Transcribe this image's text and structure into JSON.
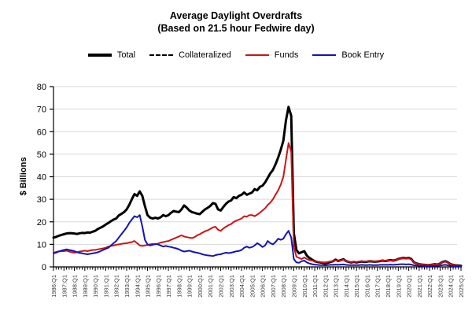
{
  "title": {
    "line1": "Average Daylight Overdrafts",
    "line2": "(Based on 21.5 hour Fedwire day)"
  },
  "legend": [
    {
      "label": "Total",
      "color": "#000000",
      "style": "solid",
      "weight": "thick"
    },
    {
      "label": "Collateralized",
      "color": "#000000",
      "style": "dashed",
      "weight": "normal"
    },
    {
      "label": "Funds",
      "color": "#cc1414",
      "style": "solid",
      "weight": "normal"
    },
    {
      "label": "Book Entry",
      "color": "#1414b4",
      "style": "solid",
      "weight": "normal"
    }
  ],
  "chart_data": {
    "type": "line",
    "title": "Average Daylight Overdrafts",
    "subtitle": "(Based on 21.5 hour Fedwire day)",
    "ylabel": "$ Billions",
    "xlabel": "",
    "ylim": [
      0,
      80
    ],
    "yticks": [
      0,
      10,
      20,
      30,
      40,
      50,
      60,
      70,
      80
    ],
    "grid": "horizontal",
    "grid_color": "#d9d9d9",
    "axis_color": "#000000",
    "x_tick_label_color": "#3a3a3a",
    "legend_position": "top",
    "x_frequency": "quarterly",
    "x_start": "1986:Q1",
    "x_end": "2025:Q1",
    "points_total": 157,
    "x_tick_labels": [
      "1986:Q1",
      "1987:Q1",
      "1988:Q1",
      "1989:Q1",
      "1990:Q1",
      "1991:Q1",
      "1992:Q1",
      "1993:Q1",
      "1994:Q1",
      "1995:Q1",
      "1996:Q1",
      "1997:Q1",
      "1998:Q1",
      "1999:Q1",
      "2000:Q1",
      "2001:Q1",
      "2002:Q1",
      "2003:Q1",
      "2004:Q1",
      "2005:Q1",
      "2006:Q1",
      "2007:Q1",
      "2008:Q1",
      "2009:Q1",
      "2010:Q1",
      "2011:Q1",
      "2012:Q1",
      "2013:Q1",
      "2014:Q1",
      "2015:Q1",
      "2016:Q1",
      "2017:Q1",
      "2018:Q1",
      "2019:Q1",
      "2020:Q1",
      "2021:Q1",
      "2022:Q1",
      "2023:Q1",
      "2024:Q1",
      "2025:Q1"
    ],
    "series": [
      {
        "name": "Total",
        "color": "#000000",
        "width": 3,
        "dash": null,
        "start_index": 0,
        "values": [
          13.0,
          13.3,
          13.8,
          14.2,
          14.5,
          14.8,
          15.0,
          14.9,
          14.8,
          14.6,
          14.9,
          15.1,
          15.0,
          15.3,
          15.2,
          15.6,
          16.0,
          16.8,
          17.4,
          18.0,
          18.8,
          19.5,
          20.3,
          21.0,
          21.5,
          22.8,
          23.5,
          24.3,
          25.5,
          27.5,
          30.0,
          32.3,
          31.5,
          33.5,
          31.5,
          27.0,
          23.0,
          21.8,
          21.5,
          21.8,
          21.5,
          22.0,
          23.0,
          22.5,
          23.0,
          24.0,
          24.8,
          24.5,
          24.3,
          25.5,
          27.3,
          26.3,
          25.0,
          24.3,
          24.0,
          23.6,
          23.4,
          24.5,
          25.5,
          26.2,
          27.0,
          28.3,
          28.0,
          25.5,
          25.0,
          26.5,
          28.0,
          29.0,
          29.5,
          31.0,
          30.5,
          31.5,
          32.0,
          33.0,
          32.0,
          32.5,
          33.0,
          34.5,
          34.0,
          35.5,
          36.0,
          37.5,
          39.5,
          41.5,
          43.0,
          45.5,
          48.5,
          52.0,
          56.0,
          65.0,
          71.0,
          67.0,
          15.0,
          7.5,
          6.0,
          6.5,
          7.0,
          5.0,
          4.0,
          3.2,
          2.5,
          2.2,
          2.0,
          1.8,
          1.5,
          1.8,
          2.2,
          2.5,
          3.2,
          2.6,
          3.0,
          3.4,
          2.6,
          2.2,
          2.0,
          2.2,
          2.0,
          2.2,
          2.4,
          2.2,
          2.3,
          2.5,
          2.4,
          2.3,
          2.4,
          2.6,
          2.8,
          2.6,
          2.8,
          3.0,
          2.8,
          3.0,
          3.5,
          3.8,
          4.0,
          3.8,
          4.0,
          3.5,
          2.0,
          1.5,
          1.2,
          1.0,
          0.9,
          0.8,
          0.8,
          1.0,
          1.2,
          1.0,
          1.5,
          2.2,
          2.5,
          2.0,
          1.2,
          0.9,
          0.7,
          0.6,
          0.5
        ]
      },
      {
        "name": "Collateralized",
        "color": "#000000",
        "width": 2,
        "dash": [
          5,
          4
        ],
        "start_index": 100,
        "values": [
          2.4,
          2.1,
          1.9,
          1.7,
          1.4,
          1.7,
          2.1,
          2.4,
          3.0,
          2.5,
          2.9,
          3.3,
          2.5,
          2.1,
          1.9,
          2.1,
          1.9,
          2.1,
          2.3,
          2.1,
          2.2,
          2.4,
          2.3,
          2.2,
          2.3,
          2.5,
          2.7,
          2.5,
          2.7,
          2.9,
          2.7,
          2.9,
          3.4,
          3.7,
          3.9,
          3.7,
          3.9,
          3.4,
          1.9,
          1.4,
          1.1,
          0.9,
          0.8,
          0.7,
          0.7,
          0.9,
          1.1,
          0.9,
          1.4,
          2.1,
          2.4,
          1.9,
          1.1,
          0.8,
          0.6,
          0.5,
          0.4
        ]
      },
      {
        "name": "Funds",
        "color": "#cc1414",
        "width": 2,
        "dash": null,
        "start_index": 0,
        "values": [
          6.3,
          6.6,
          6.9,
          7.0,
          7.0,
          7.2,
          6.8,
          6.5,
          6.3,
          6.5,
          6.8,
          7.0,
          7.2,
          7.0,
          7.3,
          7.5,
          7.5,
          7.8,
          8.0,
          8.2,
          8.5,
          9.0,
          9.3,
          9.5,
          9.8,
          10.0,
          10.2,
          10.4,
          10.5,
          10.8,
          11.0,
          11.5,
          10.5,
          9.5,
          9.3,
          9.5,
          9.7,
          10.0,
          10.2,
          10.0,
          10.3,
          10.8,
          11.0,
          11.3,
          11.5,
          12.0,
          12.5,
          13.0,
          13.5,
          14.0,
          13.5,
          13.2,
          13.0,
          12.8,
          13.2,
          14.0,
          14.5,
          15.2,
          15.8,
          16.2,
          16.8,
          17.5,
          17.8,
          16.5,
          16.0,
          17.0,
          17.8,
          18.5,
          19.0,
          20.0,
          20.5,
          21.0,
          21.5,
          22.5,
          22.3,
          23.0,
          23.0,
          22.5,
          23.2,
          24.0,
          25.0,
          26.0,
          27.5,
          28.5,
          30.0,
          32.0,
          34.0,
          36.5,
          40.0,
          47.5,
          55.0,
          51.0,
          9.0,
          4.5,
          4.0,
          3.5,
          4.2,
          3.5,
          3.0,
          2.8,
          2.5,
          2.3,
          2.2,
          2.0,
          2.0,
          2.2,
          2.4,
          2.6,
          3.0,
          2.6,
          2.9,
          3.2,
          2.6,
          2.3,
          2.2,
          2.3,
          2.2,
          2.4,
          2.5,
          2.3,
          2.4,
          2.6,
          2.5,
          2.4,
          2.5,
          2.7,
          2.8,
          2.7,
          2.8,
          2.9,
          2.8,
          3.0,
          3.4,
          3.7,
          3.8,
          3.6,
          3.8,
          3.3,
          1.9,
          1.4,
          1.2,
          1.0,
          0.9,
          0.8,
          0.8,
          1.0,
          1.1,
          1.0,
          1.4,
          2.1,
          2.4,
          1.9,
          1.1,
          0.9,
          0.7,
          0.5,
          0.4
        ]
      },
      {
        "name": "Book Entry",
        "color": "#1414b4",
        "width": 2,
        "dash": null,
        "start_index": 0,
        "values": [
          6.0,
          6.3,
          6.8,
          7.2,
          7.5,
          7.8,
          7.5,
          7.3,
          7.0,
          6.5,
          6.2,
          6.0,
          5.8,
          5.6,
          5.8,
          6.0,
          6.2,
          6.5,
          7.0,
          7.5,
          8.0,
          8.5,
          9.5,
          10.5,
          11.5,
          13.0,
          14.5,
          16.0,
          17.5,
          19.5,
          21.0,
          22.5,
          22.0,
          23.0,
          18.0,
          12.0,
          10.0,
          9.5,
          9.8,
          10.2,
          10.0,
          9.5,
          9.0,
          9.3,
          9.0,
          8.8,
          8.5,
          8.2,
          7.8,
          7.2,
          6.8,
          7.0,
          7.2,
          6.8,
          6.5,
          6.3,
          6.0,
          5.6,
          5.3,
          5.1,
          5.0,
          4.8,
          5.2,
          5.5,
          5.6,
          6.0,
          6.3,
          6.1,
          6.3,
          6.6,
          6.9,
          7.1,
          7.5,
          8.5,
          9.0,
          8.5,
          8.8,
          9.5,
          10.5,
          9.8,
          8.8,
          9.5,
          11.5,
          10.5,
          10.0,
          11.0,
          12.5,
          12.0,
          12.5,
          14.5,
          16.0,
          13.0,
          3.5,
          2.0,
          1.8,
          2.5,
          2.8,
          2.0,
          1.5,
          1.2,
          1.0,
          0.9,
          0.8,
          0.8,
          0.7,
          0.8,
          0.9,
          0.9,
          1.0,
          0.9,
          1.0,
          1.1,
          0.9,
          0.8,
          0.8,
          0.8,
          0.8,
          0.8,
          0.9,
          0.8,
          0.8,
          0.9,
          0.8,
          0.8,
          0.8,
          0.9,
          0.9,
          0.9,
          0.9,
          1.0,
          0.9,
          1.0,
          1.1,
          1.2,
          1.2,
          1.1,
          1.2,
          1.0,
          0.7,
          0.6,
          0.5,
          0.5,
          0.4,
          0.4,
          0.4,
          0.5,
          0.5,
          0.5,
          0.6,
          0.8,
          0.9,
          0.7,
          0.5,
          0.4,
          0.4,
          0.3,
          0.3
        ]
      }
    ]
  }
}
